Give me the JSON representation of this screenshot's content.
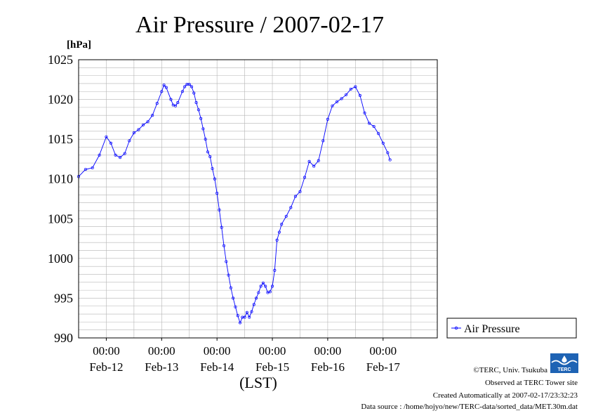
{
  "chart_data": {
    "type": "line",
    "title": "Air Pressure / 2007-02-17",
    "ylabel": "[hPa]",
    "xlabel": "(LST)",
    "ylim": [
      990,
      1025
    ],
    "yticks": [
      990,
      995,
      1000,
      1005,
      1010,
      1015,
      1020,
      1025
    ],
    "xlim": [
      "2007-02-11T12:00",
      "2007-02-17T23:30"
    ],
    "xticks": [
      {
        "time": "2007-02-12T00:00",
        "label_top": "00:00",
        "label_bottom": "Feb-12"
      },
      {
        "time": "2007-02-13T00:00",
        "label_top": "00:00",
        "label_bottom": "Feb-13"
      },
      {
        "time": "2007-02-14T00:00",
        "label_top": "00:00",
        "label_bottom": "Feb-14"
      },
      {
        "time": "2007-02-15T00:00",
        "label_top": "00:00",
        "label_bottom": "Feb-15"
      },
      {
        "time": "2007-02-16T00:00",
        "label_top": "00:00",
        "label_bottom": "Feb-16"
      },
      {
        "time": "2007-02-17T00:00",
        "label_top": "00:00",
        "label_bottom": "Feb-17"
      }
    ],
    "grid": true,
    "legend_position": "outside-right",
    "series": [
      {
        "name": "Air Pressure",
        "color": "#0000ff",
        "marker": "circle",
        "points": [
          [
            "2007-02-11T12:00",
            1010.3
          ],
          [
            "2007-02-11T15:00",
            1011.2
          ],
          [
            "2007-02-11T18:00",
            1011.4
          ],
          [
            "2007-02-11T21:00",
            1013.0
          ],
          [
            "2007-02-12T00:00",
            1015.3
          ],
          [
            "2007-02-12T02:00",
            1014.5
          ],
          [
            "2007-02-12T04:00",
            1013.0
          ],
          [
            "2007-02-12T06:00",
            1012.7
          ],
          [
            "2007-02-12T08:00",
            1013.2
          ],
          [
            "2007-02-12T10:00",
            1014.8
          ],
          [
            "2007-02-12T12:00",
            1015.8
          ],
          [
            "2007-02-12T14:00",
            1016.2
          ],
          [
            "2007-02-12T16:00",
            1016.8
          ],
          [
            "2007-02-12T18:00",
            1017.2
          ],
          [
            "2007-02-12T20:00",
            1018.0
          ],
          [
            "2007-02-12T22:00",
            1019.5
          ],
          [
            "2007-02-13T00:00",
            1021.0
          ],
          [
            "2007-02-13T01:00",
            1021.8
          ],
          [
            "2007-02-13T02:00",
            1021.5
          ],
          [
            "2007-02-13T04:00",
            1020.0
          ],
          [
            "2007-02-13T05:00",
            1019.3
          ],
          [
            "2007-02-13T06:00",
            1019.2
          ],
          [
            "2007-02-13T07:00",
            1019.6
          ],
          [
            "2007-02-13T09:00",
            1021.0
          ],
          [
            "2007-02-13T10:00",
            1021.6
          ],
          [
            "2007-02-13T11:00",
            1021.9
          ],
          [
            "2007-02-13T12:00",
            1021.9
          ],
          [
            "2007-02-13T13:00",
            1021.6
          ],
          [
            "2007-02-13T14:00",
            1020.8
          ],
          [
            "2007-02-13T15:00",
            1019.6
          ],
          [
            "2007-02-13T16:00",
            1018.7
          ],
          [
            "2007-02-13T17:00",
            1017.6
          ],
          [
            "2007-02-13T18:00",
            1016.3
          ],
          [
            "2007-02-13T19:00",
            1015.0
          ],
          [
            "2007-02-13T20:00",
            1013.4
          ],
          [
            "2007-02-13T21:00",
            1012.8
          ],
          [
            "2007-02-13T22:00",
            1011.3
          ],
          [
            "2007-02-13T23:00",
            1010.0
          ],
          [
            "2007-02-14T00:00",
            1008.2
          ],
          [
            "2007-02-14T01:00",
            1006.1
          ],
          [
            "2007-02-14T02:00",
            1003.9
          ],
          [
            "2007-02-14T03:00",
            1001.6
          ],
          [
            "2007-02-14T04:00",
            999.6
          ],
          [
            "2007-02-14T05:00",
            997.9
          ],
          [
            "2007-02-14T06:00",
            996.3
          ],
          [
            "2007-02-14T07:00",
            995.0
          ],
          [
            "2007-02-14T08:00",
            993.9
          ],
          [
            "2007-02-14T09:00",
            992.8
          ],
          [
            "2007-02-14T10:00",
            991.9
          ],
          [
            "2007-02-14T11:00",
            992.6
          ],
          [
            "2007-02-14T12:00",
            992.6
          ],
          [
            "2007-02-14T13:00",
            993.2
          ],
          [
            "2007-02-14T14:00",
            992.6
          ],
          [
            "2007-02-14T15:00",
            993.3
          ],
          [
            "2007-02-14T16:00",
            994.2
          ],
          [
            "2007-02-14T17:00",
            995.0
          ],
          [
            "2007-02-14T18:00",
            995.7
          ],
          [
            "2007-02-14T19:00",
            996.5
          ],
          [
            "2007-02-14T20:00",
            996.9
          ],
          [
            "2007-02-14T21:00",
            996.5
          ],
          [
            "2007-02-14T22:00",
            995.7
          ],
          [
            "2007-02-14T23:00",
            995.8
          ],
          [
            "2007-02-15T00:00",
            996.5
          ],
          [
            "2007-02-15T01:00",
            998.5
          ],
          [
            "2007-02-15T02:00",
            1002.3
          ],
          [
            "2007-02-15T03:00",
            1003.3
          ],
          [
            "2007-02-15T04:00",
            1004.3
          ],
          [
            "2007-02-15T06:00",
            1005.3
          ],
          [
            "2007-02-15T08:00",
            1006.4
          ],
          [
            "2007-02-15T10:00",
            1007.8
          ],
          [
            "2007-02-15T12:00",
            1008.4
          ],
          [
            "2007-02-15T14:00",
            1010.2
          ],
          [
            "2007-02-15T16:00",
            1012.2
          ],
          [
            "2007-02-15T18:00",
            1011.6
          ],
          [
            "2007-02-15T20:00",
            1012.3
          ],
          [
            "2007-02-15T22:00",
            1014.8
          ],
          [
            "2007-02-16T00:00",
            1017.5
          ],
          [
            "2007-02-16T02:00",
            1019.2
          ],
          [
            "2007-02-16T04:00",
            1019.7
          ],
          [
            "2007-02-16T06:00",
            1020.1
          ],
          [
            "2007-02-16T08:00",
            1020.6
          ],
          [
            "2007-02-16T10:00",
            1021.3
          ],
          [
            "2007-02-16T12:00",
            1021.6
          ],
          [
            "2007-02-16T14:00",
            1020.5
          ],
          [
            "2007-02-16T16:00",
            1018.3
          ],
          [
            "2007-02-16T18:00",
            1017.0
          ],
          [
            "2007-02-16T20:00",
            1016.6
          ],
          [
            "2007-02-16T22:00",
            1015.7
          ],
          [
            "2007-02-17T00:00",
            1014.5
          ],
          [
            "2007-02-17T02:00",
            1013.3
          ],
          [
            "2007-02-17T03:00",
            1012.4
          ]
        ]
      }
    ]
  },
  "credits": {
    "copyright": "©TERC, Univ. Tsukuba",
    "observed": "Observed at TERC Tower site",
    "created": "Created Automatically at 2007-02-17/23:32:23",
    "source": "Data source : /home/hojyo/new/TERC-data/sorted_data/MET.30m.dat",
    "logo_text": "TERC"
  }
}
